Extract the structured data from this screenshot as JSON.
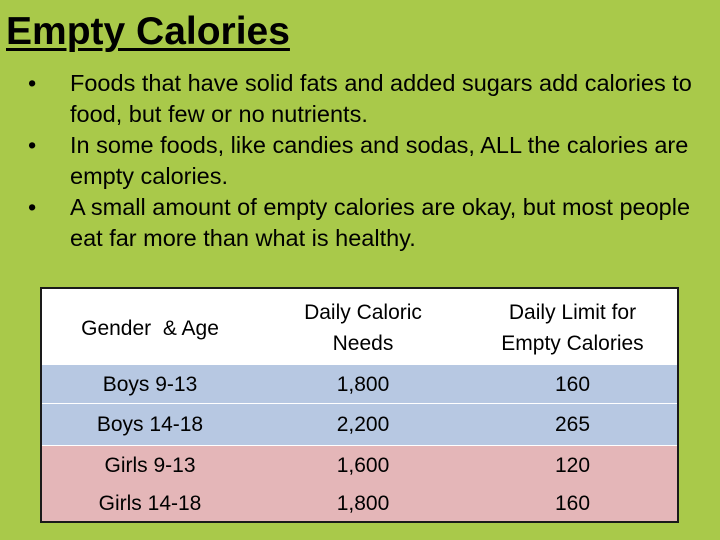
{
  "slide": {
    "title": "Empty Calories",
    "bullet_glyph": "•",
    "bullets": [
      "Foods that have solid fats and added sugars add calories to food, but few or no nutrients.",
      "In some foods, like candies and sodas, ALL the calories are empty calories.",
      "A small amount of empty calories are okay, but most people eat far more than what is healthy."
    ]
  },
  "table": {
    "headers": [
      "Gender  & Age",
      "Daily Caloric Needs",
      "Daily Limit for Empty Calories"
    ],
    "rows": [
      [
        "Boys 9-13",
        "1,800",
        "160"
      ],
      [
        "Boys 14-18",
        "2,200",
        "265"
      ],
      [
        "Girls 9-13",
        "1,600",
        "120"
      ],
      [
        "Girls 14-18",
        "1,800",
        "160"
      ]
    ]
  },
  "colors": {
    "background": "#a9c94a",
    "header_row": "#ffffff",
    "boys_rows": "#b7c8e2",
    "girls_rows": "#e4b6b8"
  }
}
